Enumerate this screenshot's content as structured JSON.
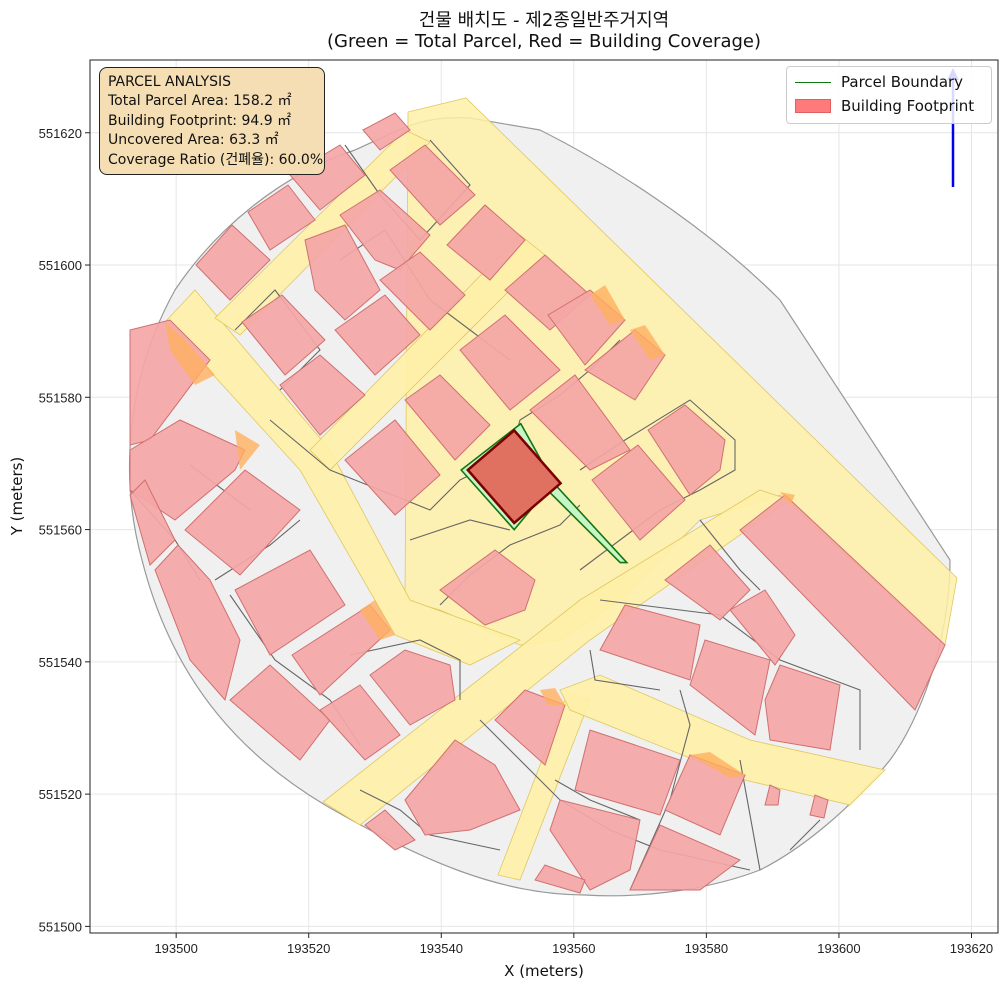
{
  "title": "건물 배치도 - 제2종일반주거지역",
  "subtitle": "(Green = Total Parcel, Red = Building Coverage)",
  "xlabel": "X (meters)",
  "ylabel": "Y (meters)",
  "x_ticks": [
    "193500",
    "193520",
    "193540",
    "193560",
    "193580",
    "193600",
    "193620"
  ],
  "y_ticks": [
    "551500",
    "551520",
    "551540",
    "551560",
    "551580",
    "551600",
    "551620"
  ],
  "info": {
    "heading": "PARCEL ANALYSIS",
    "total_area": "Total Parcel Area: 158.2 ㎡",
    "footprint": "Building Footprint: 94.9 ㎡",
    "uncovered": "Uncovered Area: 63.3 ㎡",
    "coverage": "Coverage Ratio (건폐율): 60.0%"
  },
  "legend": {
    "parcel": "Parcel Boundary",
    "building": "Building Footprint"
  },
  "colors": {
    "parcel_fill": "#c8f5c8",
    "parcel_edge": "#117711",
    "building_fill": "#f4a6a6",
    "target_building": "#e07060",
    "road": "#fff0a8",
    "north_arrow": "#0000ee"
  },
  "chart_data": {
    "type": "map",
    "xlim": [
      193487,
      193624
    ],
    "ylim": [
      551499,
      551631
    ],
    "grid": true,
    "legend_position": "top-right",
    "target_parcel": {
      "boundary": [
        [
          193543,
          551569
        ],
        [
          193552,
          551576
        ],
        [
          193557,
          551567
        ],
        [
          193568,
          551555
        ],
        [
          193567,
          551555
        ],
        [
          193556,
          551566
        ],
        [
          193551,
          551560
        ]
      ],
      "building": [
        [
          193544,
          551569
        ],
        [
          193551,
          551575
        ],
        [
          193558,
          551567
        ],
        [
          193551,
          551561
        ]
      ]
    }
  }
}
